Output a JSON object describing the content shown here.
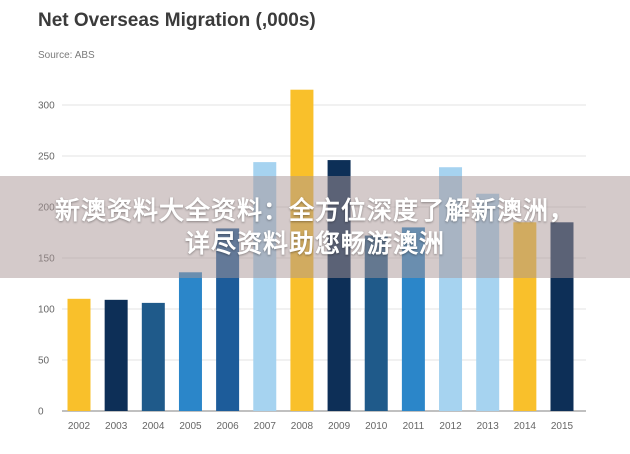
{
  "chart_data": {
    "type": "bar",
    "title": "Net Overseas Migration (,000s)",
    "subtitle": "Source: ABS",
    "categories": [
      "2002",
      "2003",
      "2004",
      "2005",
      "2006",
      "2007",
      "2008",
      "2009",
      "2010",
      "2011",
      "2012",
      "2013",
      "2014",
      "2015"
    ],
    "values": [
      110,
      109,
      106,
      136,
      179,
      244,
      315,
      246,
      172,
      180,
      239,
      213,
      185,
      185
    ],
    "ylim": [
      0,
      300
    ],
    "yticks": [
      0,
      50,
      100,
      150,
      200,
      250,
      300
    ],
    "grid": true,
    "legend": "none",
    "bar_colors": [
      "#f9c02b",
      "#0d2f57",
      "#1f5a8a",
      "#2b86c9",
      "#1d5c9a",
      "#a6d3f0",
      "#f9c02b",
      "#0d2f57",
      "#1f5a8a",
      "#2b86c9",
      "#a6d3f0",
      "#a6d3f0",
      "#f9c02b",
      "#0d2f57"
    ]
  },
  "overlay": {
    "text": "新澳资料大全资料：全方位深度了解新澳洲，详尽资料助您畅游澳洲",
    "background": "#aa9696"
  }
}
